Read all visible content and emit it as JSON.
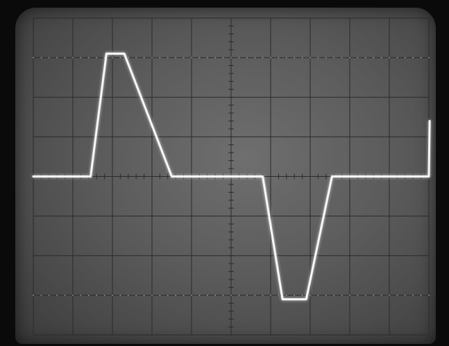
{
  "chart_data": {
    "type": "line",
    "x": [
      0,
      1.45,
      1.85,
      2.3,
      3.5,
      4.1,
      5.8,
      6.3,
      6.9,
      7.55,
      8.2,
      9.0,
      9.75,
      10.0,
      10.02
    ],
    "series": [
      {
        "values": [
          0,
          0,
          3.1,
          3.1,
          0,
          0,
          0,
          -3.1,
          -3.1,
          0,
          0,
          0,
          0,
          0,
          1.4
        ]
      }
    ],
    "xlim": [
      0,
      10
    ],
    "ylim": [
      -4,
      4
    ],
    "grid": true,
    "grid_divisions": {
      "x": 10,
      "y": 8
    },
    "trace_color": "#f7f7f7",
    "background_color": "#5e5e5e",
    "grid_color": "#2a2a2a"
  }
}
